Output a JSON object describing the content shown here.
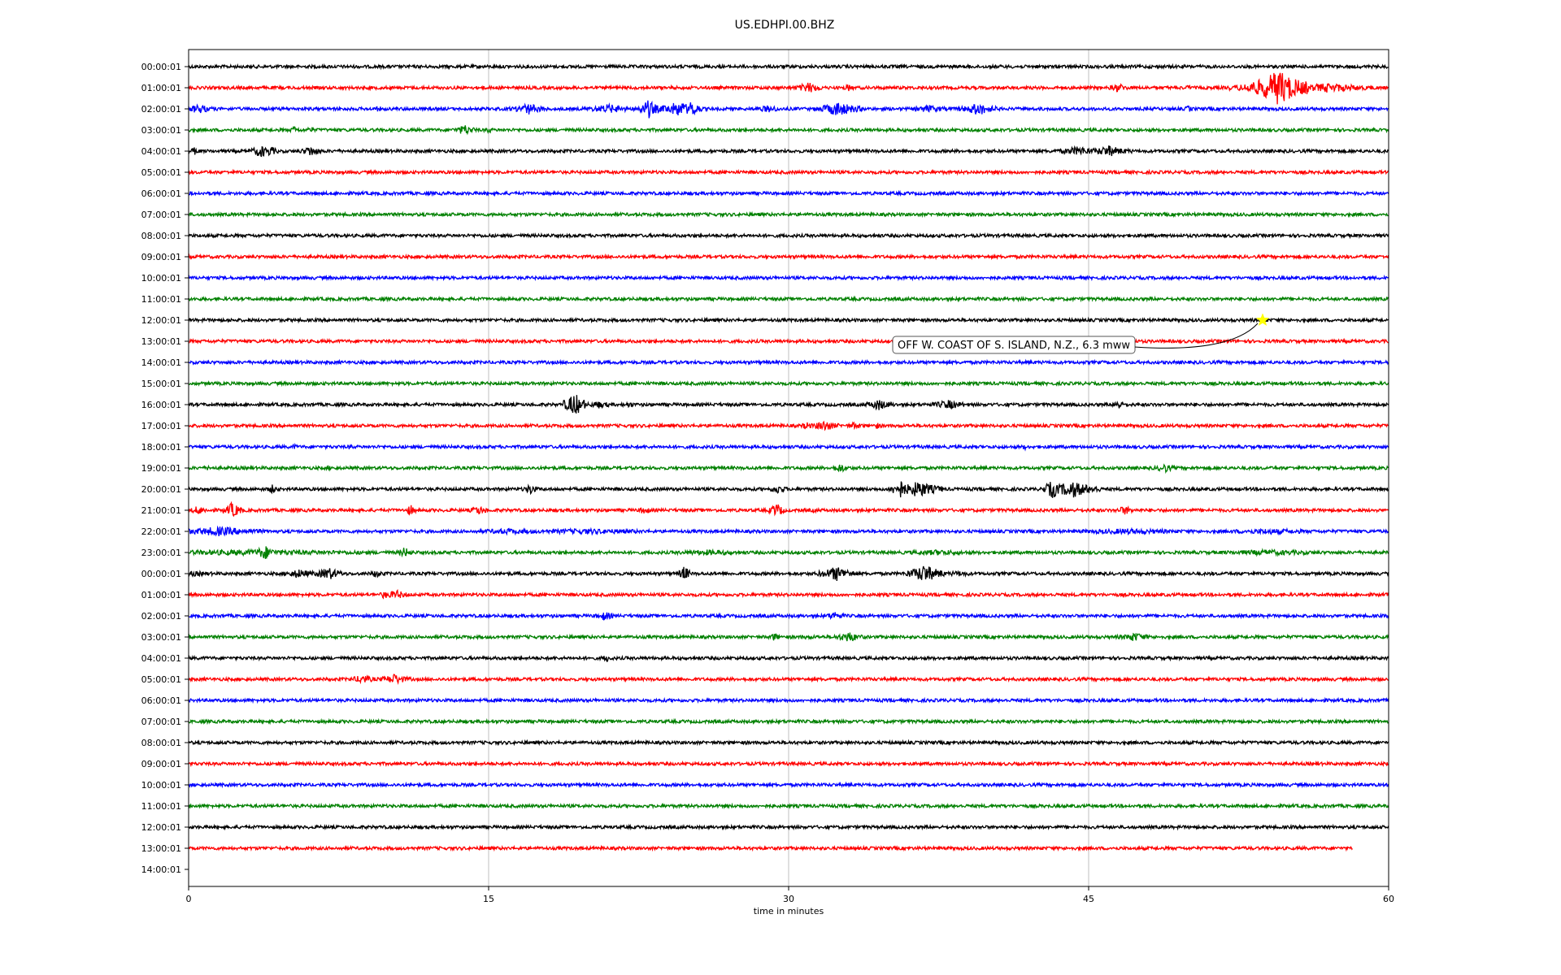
{
  "chart_data": {
    "type": "line",
    "title": "US.EDHPI.00.BHZ",
    "xlabel": "time in minutes",
    "ylabel": "",
    "xlim": [
      0,
      60
    ],
    "x_ticks": [
      0,
      15,
      30,
      45,
      60
    ],
    "grid": "vertical",
    "row_labels": [
      "00:00:01",
      "01:00:01",
      "02:00:01",
      "03:00:01",
      "04:00:01",
      "05:00:01",
      "06:00:01",
      "07:00:01",
      "08:00:01",
      "09:00:01",
      "10:00:01",
      "11:00:01",
      "12:00:01",
      "13:00:01",
      "14:00:01",
      "15:00:01",
      "16:00:01",
      "17:00:01",
      "18:00:01",
      "19:00:01",
      "20:00:01",
      "21:00:01",
      "22:00:01",
      "23:00:01",
      "00:00:01",
      "01:00:01",
      "02:00:01",
      "03:00:01",
      "04:00:01",
      "05:00:01",
      "06:00:01",
      "07:00:01",
      "08:00:01",
      "09:00:01",
      "10:00:01",
      "11:00:01",
      "12:00:01",
      "13:00:01",
      "14:00:01"
    ],
    "trace_colors": [
      "#000000",
      "#ff0000",
      "#0000ff",
      "#008000"
    ],
    "traces": [
      {
        "end_min": 60,
        "events": [
          {
            "t": 8.6,
            "a": 0.2,
            "d": 0.5
          }
        ]
      },
      {
        "end_min": 60,
        "events": [
          {
            "t": 31,
            "a": 0.6,
            "d": 0.8
          },
          {
            "t": 33,
            "a": 0.4,
            "d": 0.4
          },
          {
            "t": 46.5,
            "a": 0.5,
            "d": 0.6
          },
          {
            "t": 50,
            "a": 0.3,
            "d": 0.4
          },
          {
            "t": 52,
            "a": 0.3,
            "d": 0.4
          },
          {
            "t": 53.5,
            "a": 0.8,
            "d": 1.2
          },
          {
            "t": 54.5,
            "a": 1.9,
            "d": 1.5
          },
          {
            "t": 57,
            "a": 0.5,
            "d": 3
          }
        ]
      },
      {
        "end_min": 60,
        "events": [
          {
            "t": 0.5,
            "a": 0.5,
            "d": 1
          },
          {
            "t": 9.5,
            "a": 0.3,
            "d": 0.5
          },
          {
            "t": 17,
            "a": 0.6,
            "d": 1
          },
          {
            "t": 21,
            "a": 0.5,
            "d": 1.5
          },
          {
            "t": 23,
            "a": 1.0,
            "d": 0.6
          },
          {
            "t": 24.5,
            "a": 0.8,
            "d": 1.2
          },
          {
            "t": 25.2,
            "a": 1.0,
            "d": 0.4
          },
          {
            "t": 29,
            "a": 0.4,
            "d": 1
          },
          {
            "t": 32.5,
            "a": 0.8,
            "d": 1.2
          },
          {
            "t": 37,
            "a": 0.4,
            "d": 1.5
          },
          {
            "t": 39.5,
            "a": 0.7,
            "d": 1
          },
          {
            "t": 50,
            "a": 0.4,
            "d": 0.3
          }
        ]
      },
      {
        "end_min": 60,
        "events": [
          {
            "t": 5.3,
            "a": 0.4,
            "d": 0.4
          },
          {
            "t": 6.1,
            "a": 0.4,
            "d": 0.3
          },
          {
            "t": 13.8,
            "a": 0.6,
            "d": 0.6
          },
          {
            "t": 15,
            "a": 0.4,
            "d": 0.3
          }
        ]
      },
      {
        "end_min": 60,
        "events": [
          {
            "t": 0.3,
            "a": 0.4,
            "d": 0.4
          },
          {
            "t": 3.6,
            "a": 0.7,
            "d": 0.6
          },
          {
            "t": 4.1,
            "a": 0.6,
            "d": 0.4
          },
          {
            "t": 6.1,
            "a": 0.6,
            "d": 0.6
          },
          {
            "t": 44.5,
            "a": 0.5,
            "d": 1.5
          },
          {
            "t": 46,
            "a": 0.6,
            "d": 1.2
          }
        ]
      },
      {
        "end_min": 60,
        "events": []
      },
      {
        "end_min": 60,
        "events": []
      },
      {
        "end_min": 60,
        "events": []
      },
      {
        "end_min": 60,
        "events": []
      },
      {
        "end_min": 60,
        "events": []
      },
      {
        "end_min": 60,
        "events": []
      },
      {
        "end_min": 60,
        "events": []
      },
      {
        "end_min": 60,
        "events": []
      },
      {
        "end_min": 60,
        "events": []
      },
      {
        "end_min": 60,
        "events": []
      },
      {
        "end_min": 60,
        "events": []
      },
      {
        "end_min": 60,
        "events": [
          {
            "t": 19.3,
            "a": 1.3,
            "d": 0.6
          },
          {
            "t": 20.5,
            "a": 0.4,
            "d": 1
          },
          {
            "t": 22,
            "a": 0.3,
            "d": 0.8
          },
          {
            "t": 34.5,
            "a": 0.6,
            "d": 0.8
          },
          {
            "t": 38,
            "a": 0.5,
            "d": 1.2
          },
          {
            "t": 46.5,
            "a": 0.5,
            "d": 0.5
          },
          {
            "t": 52.7,
            "a": 0.2,
            "d": 0.3
          }
        ]
      },
      {
        "end_min": 60,
        "events": [
          {
            "t": 30.9,
            "a": 0.5,
            "d": 0.3
          },
          {
            "t": 31.8,
            "a": 0.6,
            "d": 0.8
          },
          {
            "t": 33.3,
            "a": 0.4,
            "d": 0.6
          },
          {
            "t": 34.4,
            "a": 0.4,
            "d": 0.3
          }
        ]
      },
      {
        "end_min": 60,
        "events": [
          {
            "t": 5.3,
            "a": 0.3,
            "d": 0.4
          },
          {
            "t": 8.1,
            "a": 0.3,
            "d": 0.4
          },
          {
            "t": 41.8,
            "a": 0.3,
            "d": 0.4
          }
        ]
      },
      {
        "end_min": 60,
        "events": [
          {
            "t": 1,
            "a": 0.3,
            "d": 0.3
          },
          {
            "t": 7,
            "a": 0.3,
            "d": 0.3
          },
          {
            "t": 25.3,
            "a": 0.2,
            "d": 0.3
          },
          {
            "t": 32.6,
            "a": 0.5,
            "d": 0.6
          },
          {
            "t": 48.8,
            "a": 0.5,
            "d": 0.6
          }
        ]
      },
      {
        "end_min": 60,
        "events": [
          {
            "t": 4.2,
            "a": 0.5,
            "d": 0.4
          },
          {
            "t": 17.1,
            "a": 0.6,
            "d": 0.4
          },
          {
            "t": 29.5,
            "a": 0.5,
            "d": 0.6
          },
          {
            "t": 35.6,
            "a": 1.0,
            "d": 0.6
          },
          {
            "t": 36.5,
            "a": 0.9,
            "d": 1.2
          },
          {
            "t": 43.2,
            "a": 1.0,
            "d": 0.6
          },
          {
            "t": 44.2,
            "a": 0.9,
            "d": 1.4
          }
        ]
      },
      {
        "end_min": 60,
        "events": [
          {
            "t": 0.5,
            "a": 0.5,
            "d": 0.6
          },
          {
            "t": 2.2,
            "a": 0.9,
            "d": 0.5
          },
          {
            "t": 11.1,
            "a": 0.6,
            "d": 0.3
          },
          {
            "t": 14.5,
            "a": 0.5,
            "d": 0.6
          },
          {
            "t": 22.8,
            "a": 0.6,
            "d": 0.3
          },
          {
            "t": 29.4,
            "a": 0.8,
            "d": 0.4
          },
          {
            "t": 31.3,
            "a": 0.3,
            "d": 0.3
          },
          {
            "t": 46.8,
            "a": 0.5,
            "d": 0.6
          }
        ]
      },
      {
        "end_min": 60,
        "events": [
          {
            "t": 1.5,
            "a": 0.5,
            "d": 3
          },
          {
            "t": 16,
            "a": 0.3,
            "d": 4
          },
          {
            "t": 20,
            "a": 0.3,
            "d": 7
          },
          {
            "t": 33.8,
            "a": 0.2,
            "d": 0.4
          },
          {
            "t": 47,
            "a": 0.3,
            "d": 6
          },
          {
            "t": 54,
            "a": 0.3,
            "d": 5
          }
        ]
      },
      {
        "end_min": 60,
        "events": [
          {
            "t": 3.8,
            "a": 0.8,
            "d": 0.6
          },
          {
            "t": 3,
            "a": 0.3,
            "d": 16
          },
          {
            "t": 10.8,
            "a": 0.6,
            "d": 0.4
          },
          {
            "t": 26,
            "a": 0.3,
            "d": 4
          },
          {
            "t": 37.5,
            "a": 0.3,
            "d": 4
          },
          {
            "t": 54,
            "a": 0.3,
            "d": 6
          }
        ]
      },
      {
        "end_min": 60,
        "events": [
          {
            "t": 0,
            "a": 0.3,
            "d": 3
          },
          {
            "t": 5.5,
            "a": 0.5,
            "d": 1
          },
          {
            "t": 7,
            "a": 0.7,
            "d": 0.8
          },
          {
            "t": 9.4,
            "a": 0.5,
            "d": 0.4
          },
          {
            "t": 24.8,
            "a": 0.9,
            "d": 0.3
          },
          {
            "t": 32.4,
            "a": 0.8,
            "d": 1
          },
          {
            "t": 36.8,
            "a": 1.0,
            "d": 1
          },
          {
            "t": 38.5,
            "a": 0.3,
            "d": 1.5
          }
        ]
      },
      {
        "end_min": 60,
        "events": [
          {
            "t": 9.8,
            "a": 0.5,
            "d": 0.3
          },
          {
            "t": 10.4,
            "a": 0.5,
            "d": 0.8
          }
        ]
      },
      {
        "end_min": 60,
        "events": [
          {
            "t": 20.8,
            "a": 0.5,
            "d": 0.6
          },
          {
            "t": 32.3,
            "a": 0.5,
            "d": 0.6
          },
          {
            "t": 38,
            "a": 0.2,
            "d": 0.3
          }
        ]
      },
      {
        "end_min": 60,
        "events": [
          {
            "t": 14,
            "a": 0.2,
            "d": 0.3
          },
          {
            "t": 29.3,
            "a": 0.5,
            "d": 0.3
          },
          {
            "t": 31,
            "a": 0.2,
            "d": 5
          },
          {
            "t": 33,
            "a": 0.6,
            "d": 0.8
          },
          {
            "t": 47.3,
            "a": 0.5,
            "d": 1
          }
        ]
      },
      {
        "end_min": 60,
        "events": [
          {
            "t": 20.9,
            "a": 0.4,
            "d": 0.5
          }
        ]
      },
      {
        "end_min": 60,
        "events": [
          {
            "t": 8.7,
            "a": 0.5,
            "d": 0.8
          },
          {
            "t": 10.3,
            "a": 0.6,
            "d": 0.8
          }
        ]
      },
      {
        "end_min": 60,
        "events": []
      },
      {
        "end_min": 60,
        "events": []
      },
      {
        "end_min": 60,
        "events": []
      },
      {
        "end_min": 60,
        "events": []
      },
      {
        "end_min": 60,
        "events": []
      },
      {
        "end_min": 60,
        "events": []
      },
      {
        "end_min": 60,
        "events": []
      },
      {
        "end_min": 58.2,
        "events": []
      }
    ],
    "annotation": {
      "text": "OFF W. COAST OF S. ISLAND, N.Z., 6.3 mww",
      "marker_row": 12,
      "marker_min": 53.7,
      "marker_color": "#ffff00"
    }
  }
}
